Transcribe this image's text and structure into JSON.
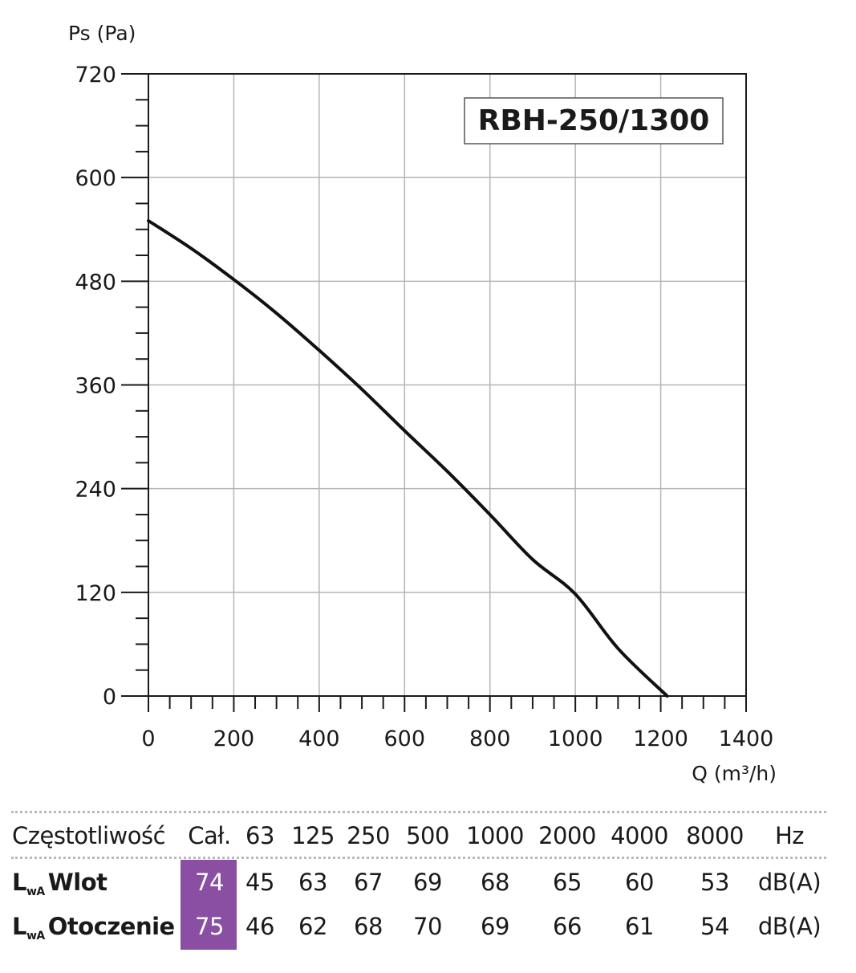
{
  "chart_data": {
    "type": "line",
    "title": "RBH-250/1300",
    "xlabel": "Q (m³/h)",
    "ylabel": "Ps (Pa)",
    "xlim": [
      0,
      1400
    ],
    "ylim": [
      0,
      720
    ],
    "xticks": [
      0,
      200,
      400,
      600,
      800,
      1000,
      1200,
      1400
    ],
    "yticks": [
      0,
      120,
      240,
      360,
      480,
      600,
      720
    ],
    "grid": true,
    "series": [
      {
        "x": [
          0,
          100,
          200,
          300,
          400,
          500,
          600,
          700,
          800,
          900,
          1000,
          1100,
          1215
        ],
        "y": [
          550,
          518,
          482,
          443,
          400,
          355,
          307,
          260,
          210,
          158,
          118,
          55,
          0
        ]
      }
    ]
  },
  "noise_table": {
    "header": {
      "label": "Częstotliwość",
      "total": "Cał.",
      "bands": [
        "63",
        "125",
        "250",
        "500",
        "1000",
        "2000",
        "4000",
        "8000"
      ],
      "unit": "Hz"
    },
    "rows": [
      {
        "symbol": "L",
        "subscript": "wA",
        "name": "Wlot",
        "total": "74",
        "values": [
          "45",
          "63",
          "67",
          "69",
          "68",
          "65",
          "60",
          "53"
        ],
        "unit": "dB(A)"
      },
      {
        "symbol": "L",
        "subscript": "wA",
        "name": "Otoczenie",
        "total": "75",
        "values": [
          "46",
          "62",
          "68",
          "70",
          "69",
          "66",
          "61",
          "54"
        ],
        "unit": "dB(A)"
      }
    ],
    "highlight_color": "#8a4fa3"
  }
}
